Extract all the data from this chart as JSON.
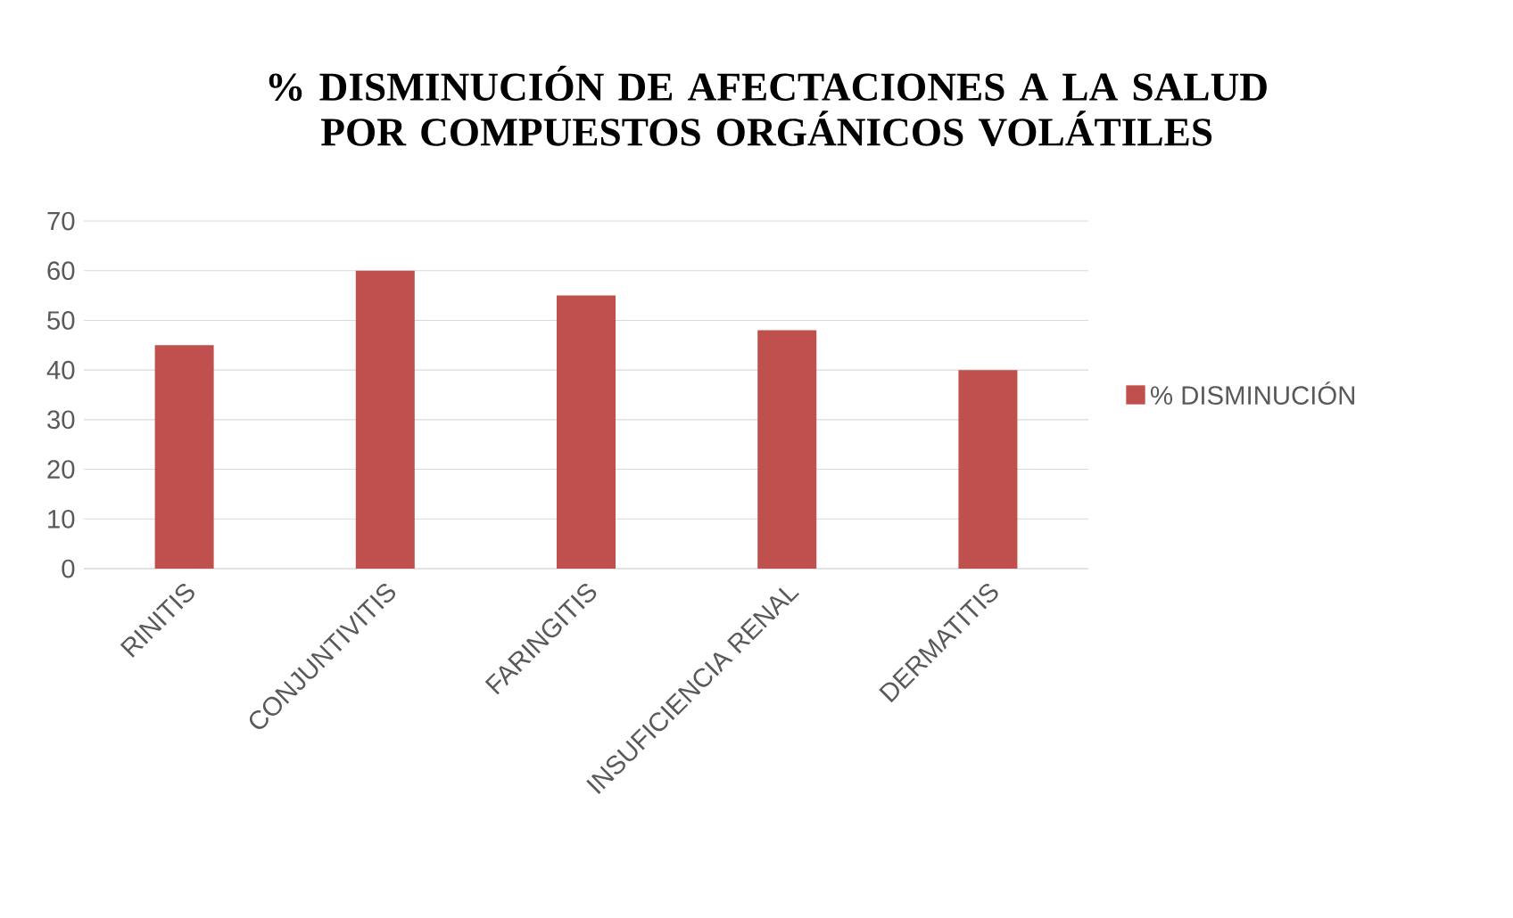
{
  "chart_data": {
    "type": "bar",
    "title": "% DISMINUCIÓN DE AFECTACIONES A LA SALUD POR COMPUESTOS ORGÁNICOS VOLÁTILES",
    "categories": [
      "RINITIS",
      "CONJUNTIVITIS",
      "FARINGITIS",
      "INSUFICIENCIA RENAL",
      "DERMATITIS"
    ],
    "series": [
      {
        "name": "% DISMINUCIÓN",
        "color": "#c0504d",
        "values": [
          45,
          60,
          55,
          48,
          40
        ]
      }
    ],
    "ylim": [
      0,
      70
    ],
    "yticks": [
      0,
      10,
      20,
      30,
      40,
      50,
      60,
      70
    ],
    "grid": "y",
    "legend": "right"
  }
}
